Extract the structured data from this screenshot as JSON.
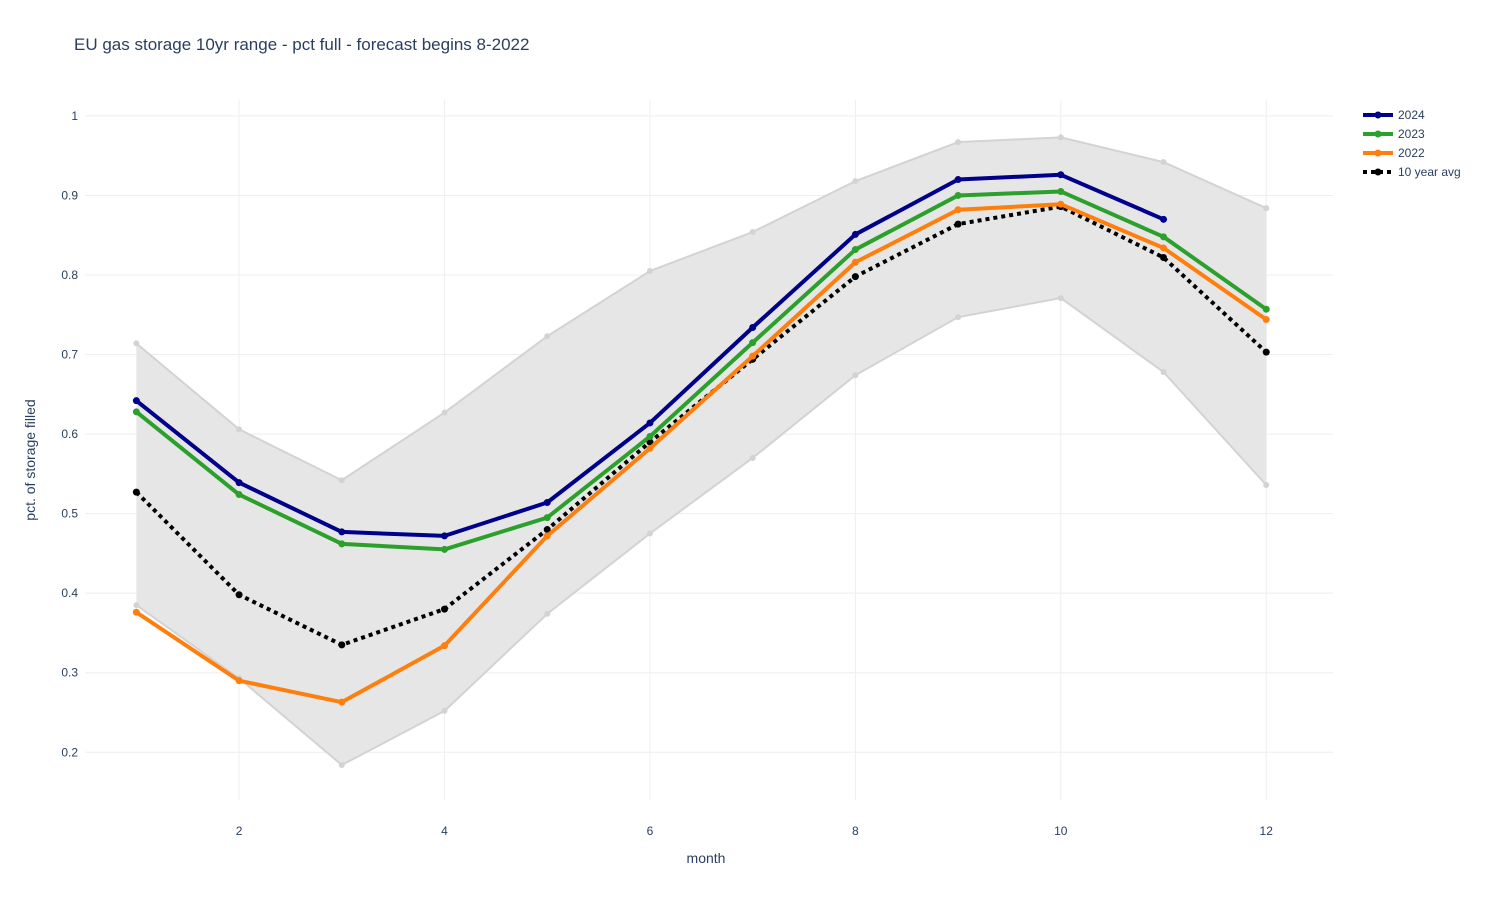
{
  "chart_data": {
    "type": "line",
    "title": "EU gas storage 10yr range - pct full - forecast begins 8-2022",
    "xlabel": "month",
    "ylabel": "pct. of storage filled",
    "xlim": [
      0.5,
      12.65
    ],
    "ylim": [
      0.14,
      1.02
    ],
    "xticks": [
      2,
      4,
      6,
      8,
      10,
      12
    ],
    "xtick_labels": [
      "2",
      "4",
      "6",
      "8",
      "10",
      "12"
    ],
    "yticks": [
      0.2,
      0.3,
      0.4,
      0.5,
      0.6,
      0.7,
      0.8,
      0.9,
      1
    ],
    "ytick_labels": [
      "0.2",
      "0.3",
      "0.4",
      "0.5",
      "0.6",
      "0.7",
      "0.8",
      "0.9",
      "1"
    ],
    "grid": true,
    "legend_position": "top-right",
    "x": [
      1,
      2,
      3,
      4,
      5,
      6,
      7,
      8,
      9,
      10,
      11,
      12
    ],
    "range_band": {
      "color": "#d3d3d3",
      "fill": "#e6e6e6",
      "upper": [
        0.714,
        0.606,
        0.542,
        0.627,
        0.723,
        0.805,
        0.854,
        0.918,
        0.967,
        0.973,
        0.942,
        0.884
      ],
      "lower": [
        0.385,
        0.293,
        0.184,
        0.252,
        0.374,
        0.475,
        0.57,
        0.674,
        0.747,
        0.771,
        0.678,
        0.536
      ]
    },
    "series": [
      {
        "name": "2024",
        "color": "#00008b",
        "dash": "solid",
        "values": [
          0.642,
          0.539,
          0.477,
          0.472,
          0.514,
          0.614,
          0.734,
          0.851,
          0.92,
          0.926,
          0.87,
          null
        ]
      },
      {
        "name": "2023",
        "color": "#2ca02c",
        "dash": "solid",
        "values": [
          0.628,
          0.524,
          0.462,
          0.455,
          0.495,
          0.597,
          0.715,
          0.832,
          0.9,
          0.905,
          0.848,
          0.757
        ]
      },
      {
        "name": "2022",
        "color": "#ff7f0e",
        "dash": "solid",
        "values": [
          0.376,
          0.29,
          0.263,
          0.334,
          0.472,
          0.582,
          0.698,
          0.816,
          0.882,
          0.889,
          0.834,
          0.744
        ]
      },
      {
        "name": "10 year avg",
        "color": "#000000",
        "dash": "dot",
        "values": [
          0.527,
          0.398,
          0.335,
          0.38,
          0.48,
          0.59,
          0.694,
          0.798,
          0.864,
          0.886,
          0.822,
          0.703
        ]
      }
    ]
  }
}
